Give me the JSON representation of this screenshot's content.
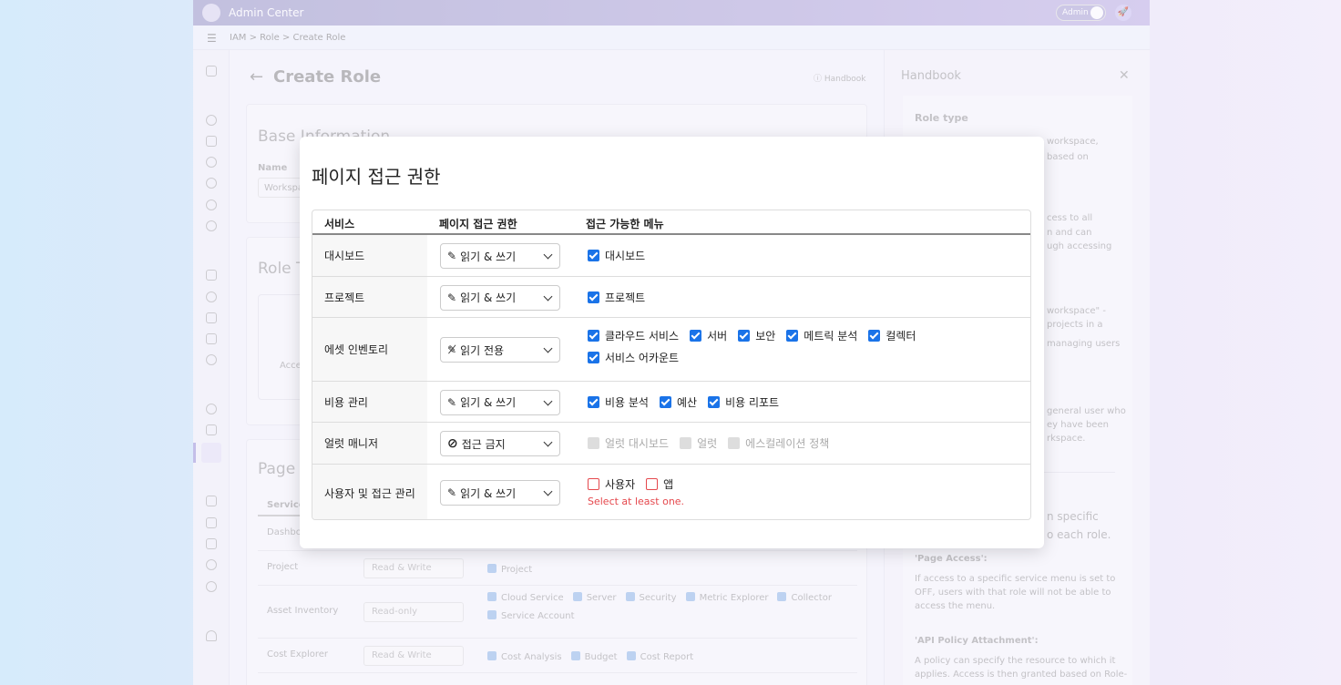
{
  "app": {
    "title": "Admin Center",
    "mode_label": "Admin",
    "breadcrumb": [
      "IAM",
      "Role",
      "Create Role"
    ]
  },
  "page": {
    "title": "Create Role",
    "handbook_link": "Handbook",
    "base_info_title": "Base Information",
    "name_label": "Name",
    "name_value": "Workspa",
    "role_type_title": "Role T",
    "role_type_hint": "Acce",
    "page_title": "Page"
  },
  "bg_table": {
    "header": "Service",
    "rows": [
      {
        "service": "Dashbo",
        "access": "",
        "menus": []
      },
      {
        "service": "Project",
        "access": "Read & Write",
        "menus": [
          "Project"
        ]
      },
      {
        "service": "Asset Inventory",
        "access": "Read-only",
        "menus": [
          "Cloud Service",
          "Server",
          "Security",
          "Metric Explorer",
          "Collector",
          "Service Account"
        ]
      },
      {
        "service": "Cost Explorer",
        "access": "Read & Write",
        "menus": [
          "Cost Analysis",
          "Budget",
          "Cost Report"
        ]
      }
    ]
  },
  "handbook": {
    "title": "Handbook",
    "role_type": "Role type",
    "fragments": [
      "workspace,",
      "based on",
      "cess to all",
      "n and can",
      "ugh accessing",
      "workspace\" -",
      "projects in a",
      "managing users",
      "general user who",
      "ey have been",
      "rkspace.",
      "n specific",
      "o each role."
    ],
    "page_access_title": "'Page Access':",
    "page_access_text": [
      "If access to a specific service menu is set to",
      "OFF, users with that role will not be able to",
      "access the menu."
    ],
    "api_title": "'API Policy Attachment':",
    "api_text": [
      "A policy can specify the resource to which it",
      "applies. Access is then granted based on Role-"
    ]
  },
  "modal": {
    "title": "페이지 접근 권한",
    "headers": [
      "서비스",
      "페이지 접근 권한",
      "접근 가능한 메뉴"
    ],
    "rows": [
      {
        "service": "대시보드",
        "access": "읽기 & 쓰기",
        "icon": "pencil-icon",
        "menus": [
          {
            "label": "대시보드",
            "state": "checked"
          }
        ]
      },
      {
        "service": "프로젝트",
        "access": "읽기 & 쓰기",
        "icon": "pencil-icon",
        "menus": [
          {
            "label": "프로젝트",
            "state": "checked"
          }
        ]
      },
      {
        "service": "에셋 인벤토리",
        "access": "읽기 전용",
        "icon": "pencil-off-icon",
        "menus": [
          {
            "label": "클라우드 서비스",
            "state": "checked"
          },
          {
            "label": "서버",
            "state": "checked"
          },
          {
            "label": "보안",
            "state": "checked"
          },
          {
            "label": "메트릭 분석",
            "state": "checked"
          },
          {
            "label": "컬렉터",
            "state": "checked"
          },
          {
            "label": "서비스 어카운트",
            "state": "checked"
          }
        ]
      },
      {
        "service": "비용 관리",
        "access": "읽기 & 쓰기",
        "icon": "pencil-icon",
        "menus": [
          {
            "label": "비용 분석",
            "state": "checked"
          },
          {
            "label": "예산",
            "state": "checked"
          },
          {
            "label": "비용 리포트",
            "state": "checked"
          }
        ]
      },
      {
        "service": "얼럿 매니저",
        "access": "접근 금지",
        "icon": "ban-icon",
        "menus": [
          {
            "label": "얼럿 대시보드",
            "state": "disabled"
          },
          {
            "label": "얼럿",
            "state": "disabled"
          },
          {
            "label": "에스컬레이션 정책",
            "state": "disabled"
          }
        ]
      },
      {
        "service": "사용자 및 접근 관리",
        "access": "읽기 & 쓰기",
        "icon": "pencil-icon",
        "menus": [
          {
            "label": "사용자",
            "state": "error"
          },
          {
            "label": "앱",
            "state": "error"
          }
        ],
        "error": "Select at least one."
      }
    ]
  },
  "colors": {
    "accent": "#1a73e8",
    "error": "#e5484d",
    "header": "#9896c6"
  }
}
